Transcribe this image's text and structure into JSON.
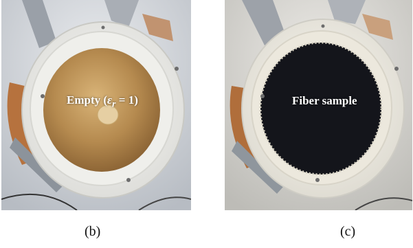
{
  "panels": [
    {
      "caption": "(b)",
      "label_prefix": "Empty (",
      "label_symbol": "ε",
      "label_subscript": "r",
      "label_suffix": " = 1)"
    },
    {
      "caption": "(c)",
      "label": "Fiber sample"
    }
  ]
}
